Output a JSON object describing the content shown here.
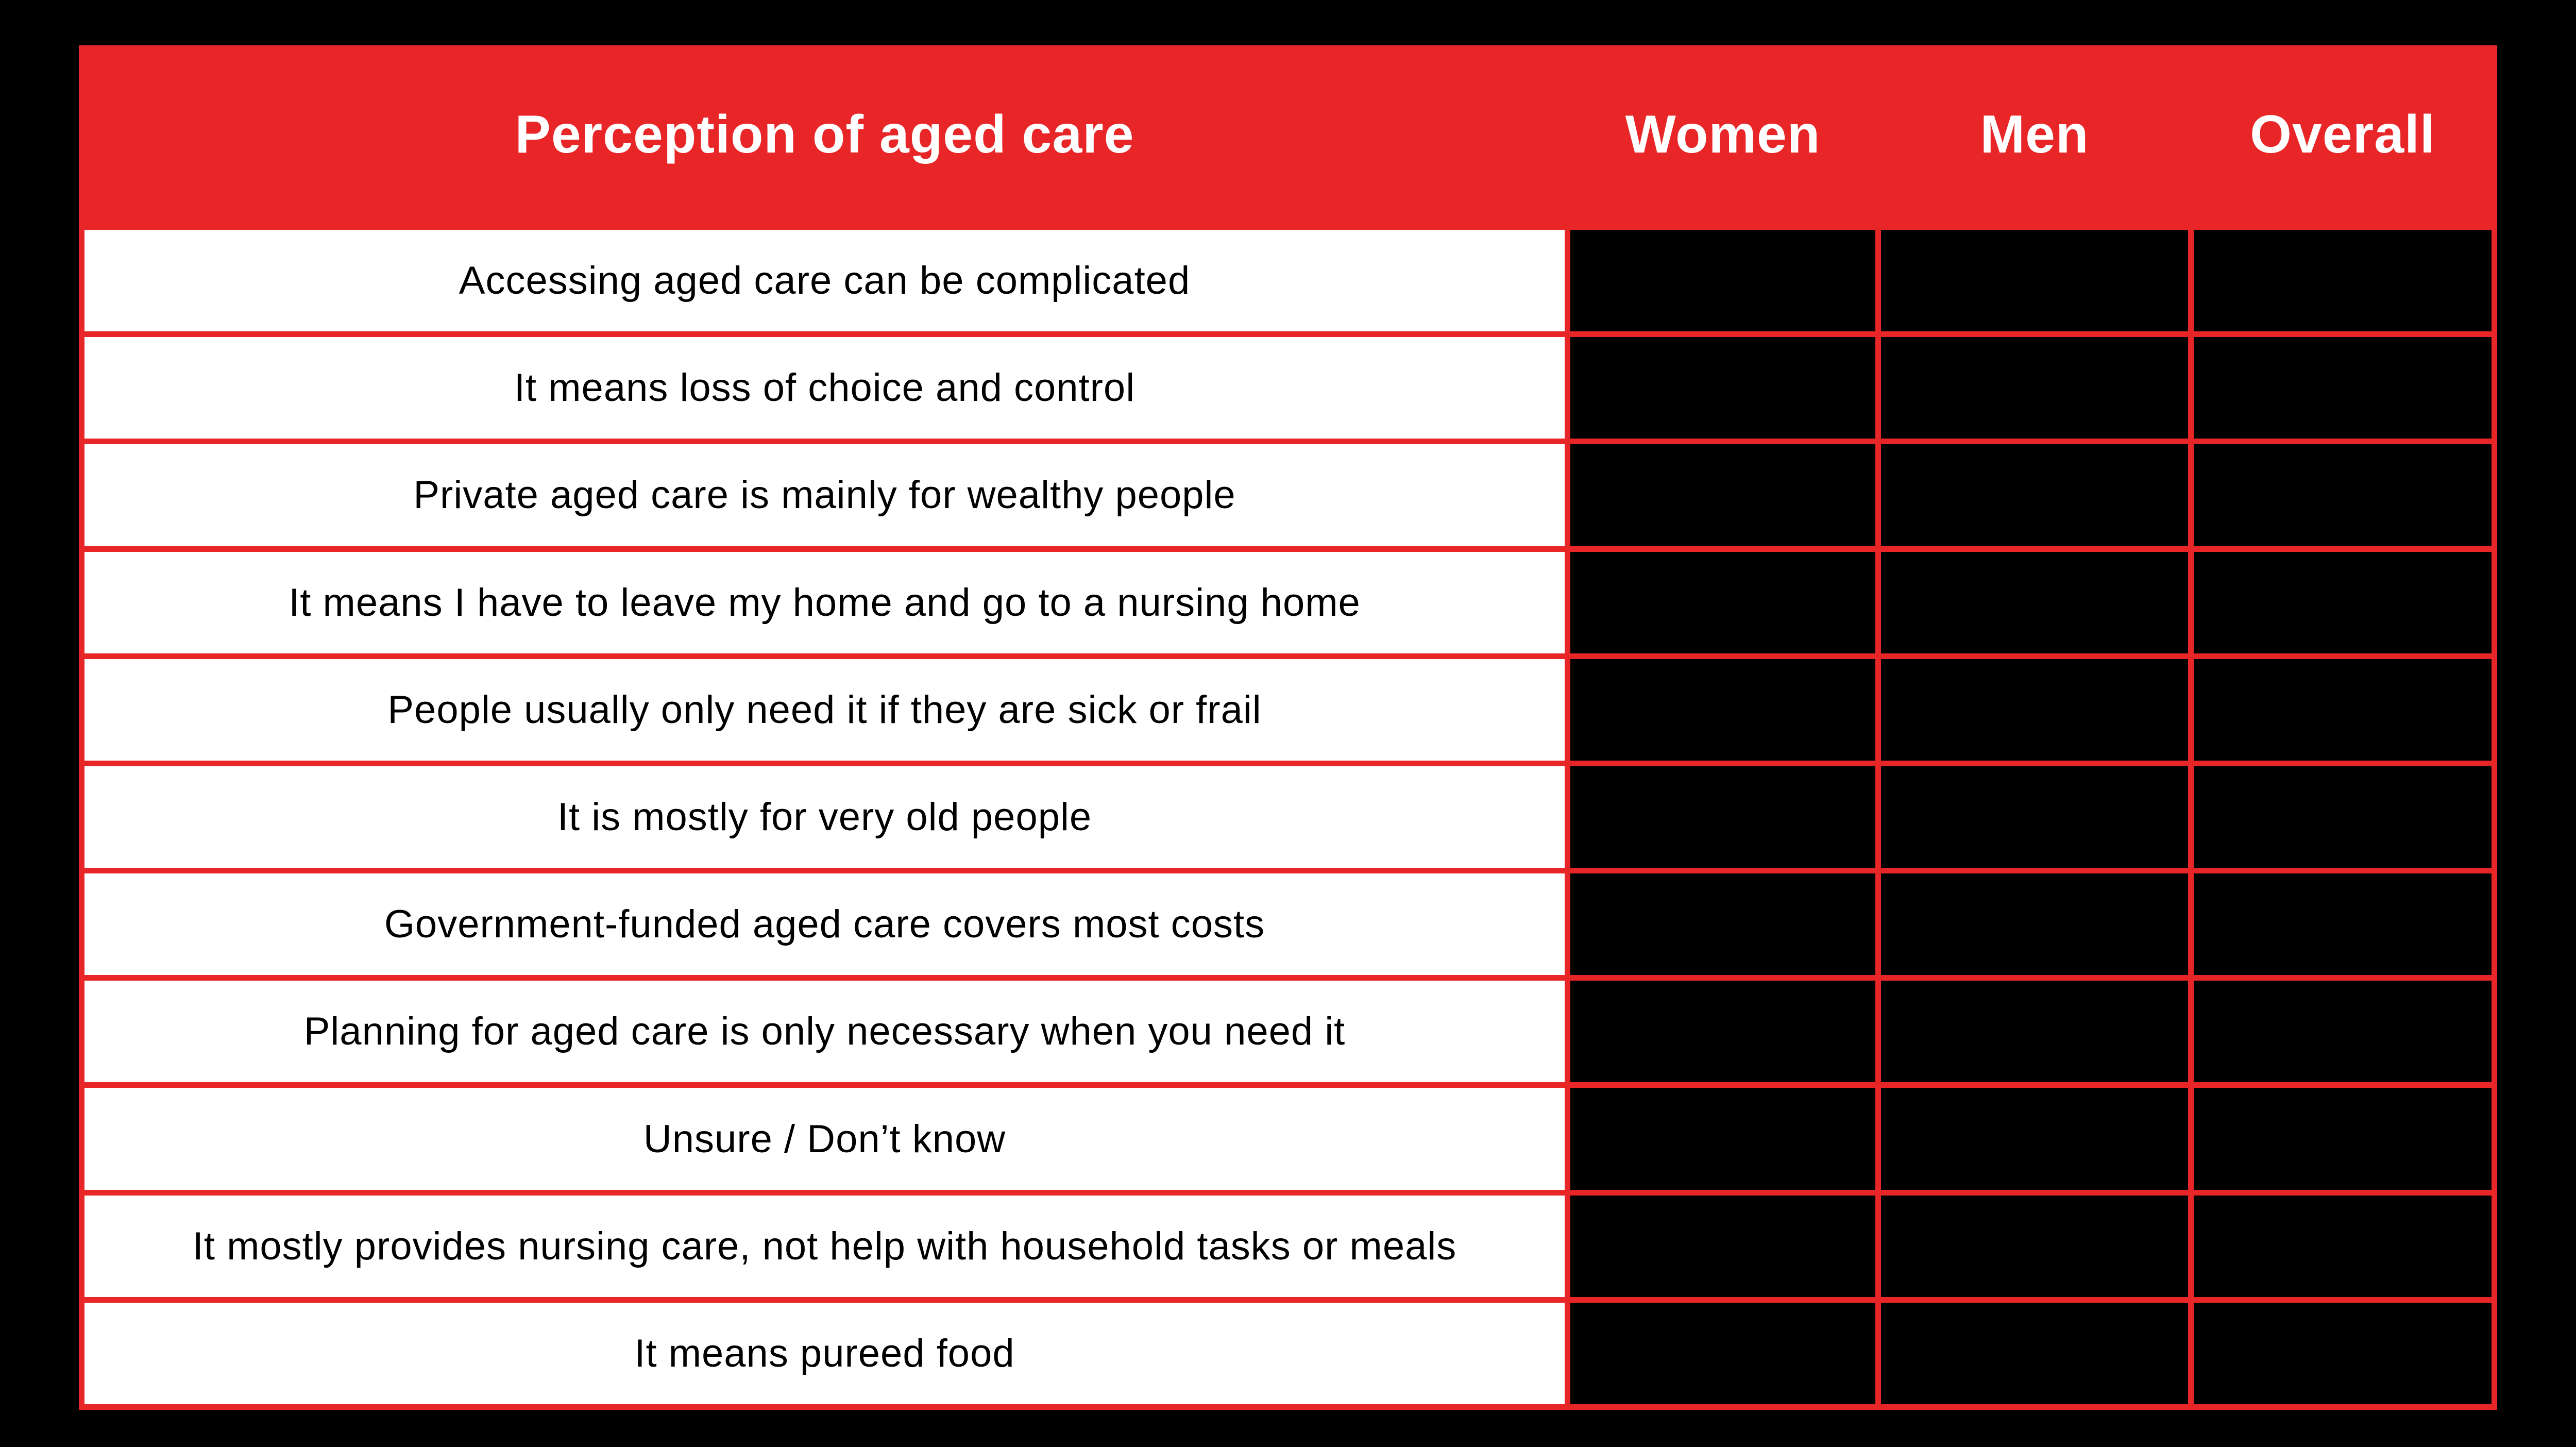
{
  "title": "Perception of aged care",
  "table": {
    "header": {
      "label": "Perception of aged care",
      "columns": [
        "Women",
        "Men",
        "Overall"
      ]
    },
    "rows": [
      "Accessing aged care can be complicated",
      "It means loss of choice and control",
      "Private aged care is mainly for wealthy people",
      "It means I have to leave my home and go to a nursing home",
      "People usually only need it if they are sick or frail",
      "It is mostly for very old people",
      "Government-funded aged care covers most costs",
      "Planning for aged care is only necessary when you need it",
      "Unsure / Don’t know",
      "It mostly provides nursing care, not help with household tasks or meals",
      "It means pureed food"
    ]
  },
  "colors": {
    "accent_red": "#E82628",
    "page_background": "#000000",
    "label_cell_background": "#FFFFFF",
    "value_cell_background": "#000000",
    "header_text": "#FFFFFF",
    "body_text": "#000000"
  },
  "chart_data": {
    "type": "table",
    "title": "Perception of aged care",
    "columns": [
      "Perception of aged care",
      "Women",
      "Men",
      "Overall"
    ],
    "rows": [
      "Accessing aged care can be complicated",
      "It means loss of choice and control",
      "Private aged care is mainly for wealthy people",
      "It means I have to leave my home and go to a nursing home",
      "People usually only need it if they are sick or frail",
      "It is mostly for very old people",
      "Government-funded aged care covers most costs",
      "Planning for aged care is only necessary when you need it",
      "Unsure / Don’t know",
      "It mostly provides nursing care, not help with household tasks or meals",
      "It means pureed food"
    ],
    "values": [
      [
        null,
        null,
        null
      ],
      [
        null,
        null,
        null
      ],
      [
        null,
        null,
        null
      ],
      [
        null,
        null,
        null
      ],
      [
        null,
        null,
        null
      ],
      [
        null,
        null,
        null
      ],
      [
        null,
        null,
        null
      ],
      [
        null,
        null,
        null
      ],
      [
        null,
        null,
        null
      ],
      [
        null,
        null,
        null
      ],
      [
        null,
        null,
        null
      ]
    ],
    "note": "All Women/Men/Overall data cells are rendered as solid black rectangles; no numeric values are visible in the image",
    "layout": {
      "header_background": "#E82628",
      "grid_line_color": "#E82628",
      "value_cell_background": "#000000",
      "grid": true,
      "legend": false
    }
  }
}
